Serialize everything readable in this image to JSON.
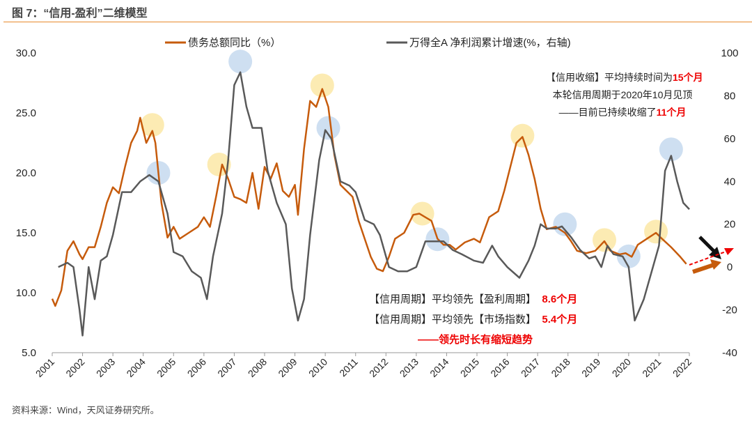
{
  "title": "图 7：“信用-盈利”二维模型",
  "source": "资料来源：Wind，天风证券研究所。",
  "colors": {
    "debt": "#c65b0c",
    "profit": "#595959",
    "yellow": "#fbe7a6",
    "blue": "#c5d9ef",
    "red": "#e00000"
  },
  "annotations": {
    "top": [
      {
        "text": "【信用收缩】平均持续时间为",
        "hl": "15个月"
      },
      {
        "text": "本轮信用周期于2020年10月见顶",
        "hl": ""
      },
      {
        "text": "——目前已持续收缩了",
        "hl": "11个月"
      }
    ],
    "bottom": [
      {
        "text": "【信用周期】平均领先【盈利周期】",
        "hl": "8.6个月"
      },
      {
        "text": "【信用周期】平均领先【市场指数】",
        "hl": "5.4个月"
      },
      {
        "text": "",
        "hl": "——领先时长有缩短趋势"
      }
    ]
  },
  "chart_data": {
    "type": "line",
    "title": "“信用-盈利”二维模型",
    "x_ticks": [
      "2001",
      "2002",
      "2003",
      "2004",
      "2005",
      "2006",
      "2007",
      "2008",
      "2009",
      "2010",
      "2011",
      "2012",
      "2013",
      "2014",
      "2015",
      "2016",
      "2017",
      "2018",
      "2019",
      "2020",
      "2021",
      "2022"
    ],
    "ylim_left": [
      5,
      30
    ],
    "yticks_left": [
      "5.0",
      "10.0",
      "15.0",
      "20.0",
      "25.0",
      "30.0"
    ],
    "ylim_right": [
      -40,
      100
    ],
    "yticks_right": [
      "-40",
      "-20",
      "0",
      "20",
      "40",
      "60",
      "80",
      "100"
    ],
    "legend": {
      "placement": "top"
    },
    "series": [
      {
        "name": "债务总额同比（%）",
        "axis": "left",
        "color": "#c65b0c",
        "points": [
          [
            2001.0,
            9.5
          ],
          [
            2001.1,
            8.9
          ],
          [
            2001.3,
            10.2
          ],
          [
            2001.5,
            13.5
          ],
          [
            2001.7,
            14.3
          ],
          [
            2001.9,
            13.2
          ],
          [
            2002.0,
            12.8
          ],
          [
            2002.2,
            13.8
          ],
          [
            2002.4,
            13.8
          ],
          [
            2002.6,
            15.5
          ],
          [
            2002.8,
            17.5
          ],
          [
            2003.0,
            18.8
          ],
          [
            2003.2,
            18.3
          ],
          [
            2003.4,
            20.5
          ],
          [
            2003.6,
            22.5
          ],
          [
            2003.8,
            23.5
          ],
          [
            2003.9,
            24.6
          ],
          [
            2004.1,
            22.5
          ],
          [
            2004.3,
            23.5
          ],
          [
            2004.4,
            22.5
          ],
          [
            2004.6,
            17.5
          ],
          [
            2004.8,
            14.6
          ],
          [
            2005.0,
            15.5
          ],
          [
            2005.2,
            14.5
          ],
          [
            2005.5,
            15.0
          ],
          [
            2005.8,
            15.5
          ],
          [
            2006.0,
            16.3
          ],
          [
            2006.2,
            15.5
          ],
          [
            2006.4,
            18.0
          ],
          [
            2006.6,
            20.7
          ],
          [
            2006.8,
            19.5
          ],
          [
            2007.0,
            18.0
          ],
          [
            2007.2,
            17.8
          ],
          [
            2007.4,
            17.5
          ],
          [
            2007.6,
            20.0
          ],
          [
            2007.8,
            17.0
          ],
          [
            2008.0,
            20.5
          ],
          [
            2008.2,
            19.5
          ],
          [
            2008.4,
            20.8
          ],
          [
            2008.6,
            18.5
          ],
          [
            2008.8,
            18.0
          ],
          [
            2009.0,
            19.0
          ],
          [
            2009.1,
            16.5
          ],
          [
            2009.3,
            22.0
          ],
          [
            2009.5,
            26.0
          ],
          [
            2009.7,
            25.5
          ],
          [
            2009.9,
            27.0
          ],
          [
            2010.1,
            25.5
          ],
          [
            2010.3,
            21.5
          ],
          [
            2010.5,
            19.0
          ],
          [
            2010.7,
            18.5
          ],
          [
            2010.9,
            18.0
          ],
          [
            2011.1,
            16.0
          ],
          [
            2011.3,
            14.5
          ],
          [
            2011.5,
            13.0
          ],
          [
            2011.7,
            12.0
          ],
          [
            2011.9,
            11.8
          ],
          [
            2012.1,
            13.0
          ],
          [
            2012.3,
            14.5
          ],
          [
            2012.6,
            15.0
          ],
          [
            2012.9,
            16.5
          ],
          [
            2013.1,
            16.6
          ],
          [
            2013.3,
            16.3
          ],
          [
            2013.5,
            16.0
          ],
          [
            2013.7,
            14.5
          ],
          [
            2013.9,
            14.0
          ],
          [
            2014.1,
            14.0
          ],
          [
            2014.3,
            13.6
          ],
          [
            2014.6,
            14.2
          ],
          [
            2014.9,
            14.5
          ],
          [
            2015.1,
            14.2
          ],
          [
            2015.4,
            16.3
          ],
          [
            2015.7,
            16.8
          ],
          [
            2015.9,
            18.5
          ],
          [
            2016.1,
            20.5
          ],
          [
            2016.3,
            22.5
          ],
          [
            2016.5,
            23.0
          ],
          [
            2016.7,
            21.5
          ],
          [
            2016.9,
            19.5
          ],
          [
            2017.1,
            17.0
          ],
          [
            2017.3,
            15.3
          ],
          [
            2017.6,
            15.5
          ],
          [
            2017.9,
            15.0
          ],
          [
            2018.1,
            14.3
          ],
          [
            2018.3,
            13.5
          ],
          [
            2018.6,
            13.3
          ],
          [
            2018.9,
            13.5
          ],
          [
            2019.2,
            14.3
          ],
          [
            2019.4,
            13.5
          ],
          [
            2019.7,
            13.2
          ],
          [
            2019.9,
            13.3
          ],
          [
            2020.1,
            13.0
          ],
          [
            2020.3,
            14.0
          ],
          [
            2020.6,
            14.5
          ],
          [
            2020.9,
            15.0
          ],
          [
            2021.1,
            14.5
          ],
          [
            2021.4,
            13.8
          ],
          [
            2021.7,
            13.0
          ],
          [
            2021.9,
            12.4
          ]
        ]
      },
      {
        "name": "万得全A 净利润累计增速(%，右轴)",
        "axis": "right",
        "color": "#595959",
        "points": [
          [
            2001.2,
            0
          ],
          [
            2001.5,
            2
          ],
          [
            2001.7,
            0
          ],
          [
            2001.9,
            -20
          ],
          [
            2002.0,
            -32
          ],
          [
            2002.2,
            0
          ],
          [
            2002.4,
            -15
          ],
          [
            2002.6,
            3
          ],
          [
            2002.8,
            5
          ],
          [
            2003.0,
            15
          ],
          [
            2003.3,
            35
          ],
          [
            2003.6,
            35
          ],
          [
            2003.9,
            40
          ],
          [
            2004.2,
            43
          ],
          [
            2004.5,
            40
          ],
          [
            2004.8,
            25
          ],
          [
            2005.0,
            7
          ],
          [
            2005.3,
            5
          ],
          [
            2005.6,
            -2
          ],
          [
            2005.9,
            -5
          ],
          [
            2006.1,
            -15
          ],
          [
            2006.3,
            5
          ],
          [
            2006.6,
            25
          ],
          [
            2006.8,
            50
          ],
          [
            2007.0,
            85
          ],
          [
            2007.2,
            91
          ],
          [
            2007.4,
            75
          ],
          [
            2007.6,
            65
          ],
          [
            2007.9,
            65
          ],
          [
            2008.1,
            45
          ],
          [
            2008.4,
            30
          ],
          [
            2008.7,
            20
          ],
          [
            2008.9,
            -10
          ],
          [
            2009.1,
            -25
          ],
          [
            2009.3,
            -15
          ],
          [
            2009.5,
            15
          ],
          [
            2009.8,
            50
          ],
          [
            2010.0,
            64
          ],
          [
            2010.2,
            60
          ],
          [
            2010.5,
            40
          ],
          [
            2010.8,
            38
          ],
          [
            2011.0,
            35
          ],
          [
            2011.3,
            22
          ],
          [
            2011.6,
            20
          ],
          [
            2011.8,
            15
          ],
          [
            2012.1,
            0
          ],
          [
            2012.4,
            -2
          ],
          [
            2012.7,
            -2
          ],
          [
            2013.0,
            0
          ],
          [
            2013.3,
            12
          ],
          [
            2013.6,
            12
          ],
          [
            2013.9,
            12
          ],
          [
            2014.2,
            8
          ],
          [
            2014.5,
            6
          ],
          [
            2014.9,
            3
          ],
          [
            2015.2,
            2
          ],
          [
            2015.5,
            10
          ],
          [
            2015.7,
            5
          ],
          [
            2016.0,
            0
          ],
          [
            2016.4,
            -5
          ],
          [
            2016.7,
            3
          ],
          [
            2016.9,
            10
          ],
          [
            2017.1,
            20
          ],
          [
            2017.3,
            18
          ],
          [
            2017.6,
            18
          ],
          [
            2017.8,
            19
          ],
          [
            2018.1,
            14
          ],
          [
            2018.4,
            8
          ],
          [
            2018.7,
            4
          ],
          [
            2018.9,
            5
          ],
          [
            2019.1,
            0
          ],
          [
            2019.3,
            10
          ],
          [
            2019.5,
            6
          ],
          [
            2019.8,
            5
          ],
          [
            2020.0,
            0
          ],
          [
            2020.2,
            -25
          ],
          [
            2020.5,
            -15
          ],
          [
            2020.8,
            0
          ],
          [
            2021.0,
            10
          ],
          [
            2021.2,
            45
          ],
          [
            2021.4,
            52
          ],
          [
            2021.6,
            40
          ],
          [
            2021.8,
            30
          ],
          [
            2022.0,
            27
          ]
        ]
      }
    ],
    "highlights_credit_peaks": [
      [
        2004.3,
        24.0
      ],
      [
        2006.5,
        20.7
      ],
      [
        2009.9,
        27.3
      ],
      [
        2013.2,
        16.6
      ],
      [
        2016.5,
        23.1
      ],
      [
        2019.2,
        14.4
      ],
      [
        2020.9,
        15.1
      ]
    ],
    "highlights_profit_peaks": [
      [
        2004.5,
        44
      ],
      [
        2007.2,
        96
      ],
      [
        2010.1,
        65
      ],
      [
        2013.7,
        13
      ],
      [
        2017.9,
        20
      ],
      [
        2020.0,
        5
      ],
      [
        2021.4,
        55
      ]
    ]
  }
}
